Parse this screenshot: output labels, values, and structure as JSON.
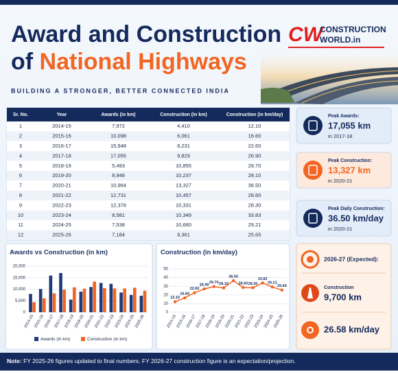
{
  "header": {
    "title_line1": "Award and Construction",
    "title_of": "of",
    "title_highlight": "National Highways",
    "subtitle": "BUILDING A STRONGER, BETTER CONNECTED INDIA",
    "logo_cw": "CW",
    "logo_line1": "CONSTRUCTION",
    "logo_line2": "WORLD.in"
  },
  "table": {
    "columns": [
      "Sr. No.",
      "Year",
      "Awards (in km)",
      "Construction (in km)",
      "Construction (in km/day)"
    ],
    "rows": [
      [
        "1",
        "2014-15",
        "7,972",
        "4,410",
        "12.10"
      ],
      [
        "2",
        "2015-16",
        "10,098",
        "6,061",
        "16.60"
      ],
      [
        "3",
        "2016-17",
        "15,948",
        "8,231",
        "22.60"
      ],
      [
        "4",
        "2017-18",
        "17,055",
        "9,829",
        "26.90"
      ],
      [
        "5",
        "2018-19",
        "5,493",
        "10,855",
        "29.70"
      ],
      [
        "6",
        "2019-20",
        "8,948",
        "10,237",
        "28.10"
      ],
      [
        "7",
        "2020-21",
        "10,964",
        "13,327",
        "36.50"
      ],
      [
        "8",
        "2021-22",
        "12,731",
        "10,457",
        "28.60"
      ],
      [
        "9",
        "2022-23",
        "12,376",
        "10,331",
        "28.30"
      ],
      [
        "10",
        "2023-24",
        "8,581",
        "10,349",
        "33.83"
      ],
      [
        "11",
        "2024-25",
        "7,538",
        "10,660",
        "29.21"
      ],
      [
        "12",
        "2025-26",
        "7,184",
        "9,361",
        "25.65"
      ]
    ]
  },
  "cards": [
    {
      "label": "Peak Awards:",
      "value": "17,055 km",
      "sub": "in 2017-18"
    },
    {
      "label": "Peak Construction:",
      "value": "13,327 km",
      "sub": "in 2020-21"
    },
    {
      "label": "Peak Daily Construction:",
      "value": "36.50 km/day",
      "sub": "in 2020-21"
    }
  ],
  "chart_data": [
    {
      "type": "bar",
      "title": "Awards vs Construction (in km)",
      "categories": [
        "2014-15",
        "2015-16",
        "2016-17",
        "2017-18",
        "2018-19",
        "2019-20",
        "2020-21",
        "2021-22",
        "2022-23",
        "2023-24",
        "2024-25",
        "2025-26"
      ],
      "series": [
        {
          "name": "Awards (in km)",
          "color": "#1f3a7a",
          "values": [
            7972,
            10098,
            15948,
            17055,
            5493,
            8948,
            10964,
            12731,
            12376,
            8581,
            7538,
            7184
          ]
        },
        {
          "name": "Construction (in km)",
          "color": "#f26522",
          "values": [
            4410,
            6061,
            8231,
            9829,
            10855,
            10237,
            13327,
            10457,
            10331,
            10349,
            10660,
            9361
          ]
        }
      ],
      "ylim": [
        0,
        20000
      ],
      "yticks": [
        0,
        {
          "value": 5000,
          "label": "5,000"
        },
        {
          "value": 10000,
          "label": "10,000"
        },
        {
          "value": 15000,
          "label": "15,000"
        },
        {
          "value": 20000,
          "label": "20,000"
        }
      ],
      "grid": true
    },
    {
      "type": "line",
      "title": "Construction (in km/day)",
      "categories": [
        "2014-15",
        "2015-16",
        "2016-17",
        "2017-18",
        "2018-19",
        "2019-20",
        "2020-21",
        "2021-22",
        "2022-23",
        "2023-24",
        "2024-25",
        "2025-26"
      ],
      "values": [
        12.1,
        16.6,
        22.6,
        26.9,
        29.7,
        28.1,
        36.5,
        28.6,
        28.3,
        33.83,
        29.21,
        25.65
      ],
      "value_labels": [
        "12.10",
        "16.60",
        "22.60",
        "26.90",
        "29.70",
        "28.10",
        "36.50",
        "28.60",
        "28.30",
        "33.83",
        "29.21",
        "25.65"
      ],
      "color": "#f26522",
      "ylim": [
        0,
        50
      ],
      "yticks": [
        0,
        10,
        20,
        30,
        40,
        50
      ],
      "grid": true
    }
  ],
  "expected": {
    "title": "2026-27 (Expected):",
    "construction_label": "Construction",
    "construction_value": "9,700 km",
    "daily_value": "26.58 km/day"
  },
  "note": {
    "label": "Note:",
    "text": "FY 2025-26 figures updated to final numbers. FY 2026-27 construction figure is an expectation/projection."
  }
}
